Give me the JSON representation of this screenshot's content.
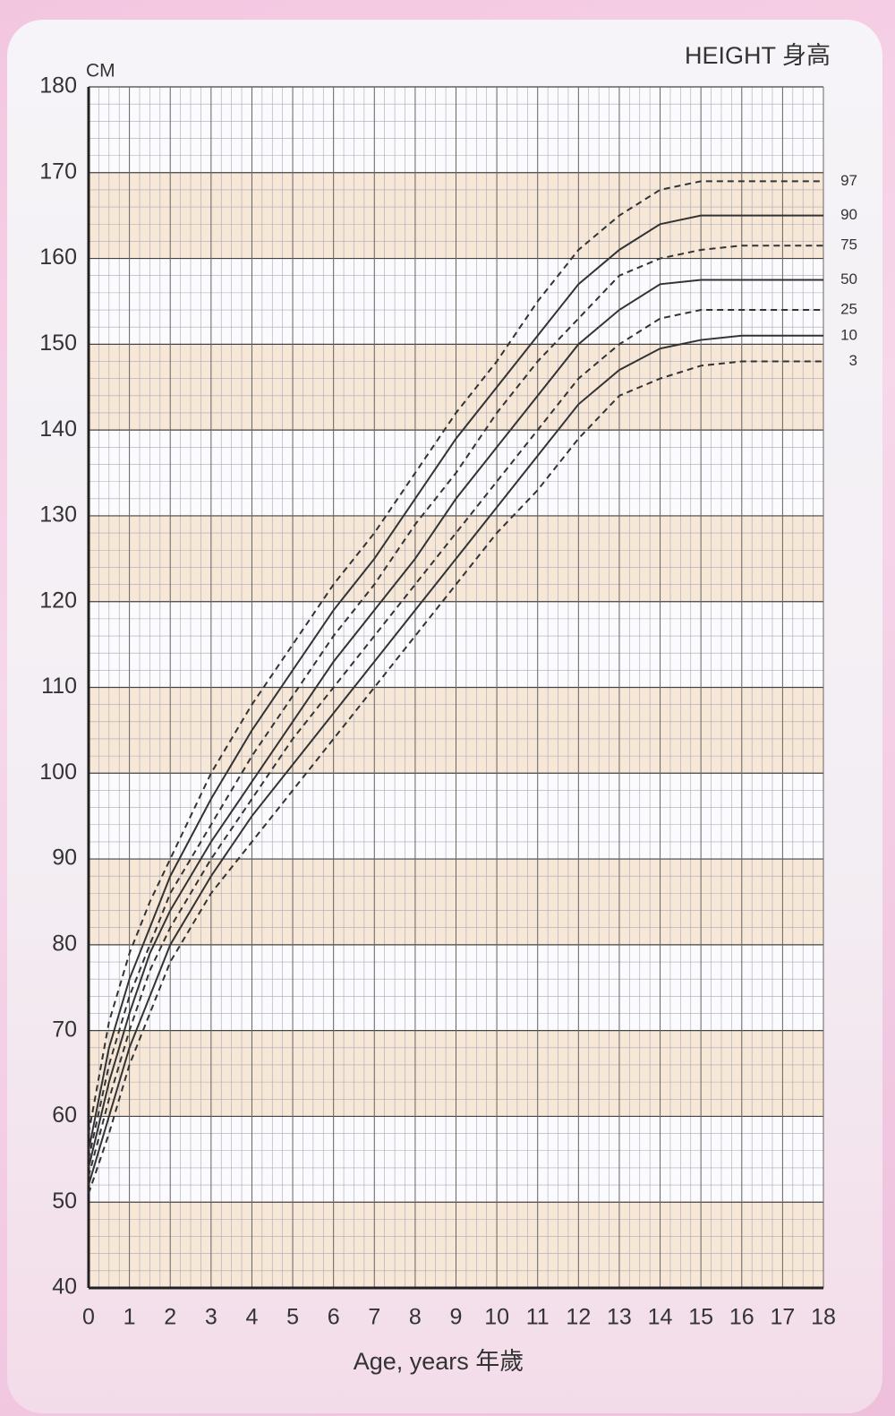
{
  "chart_data": {
    "type": "line",
    "title": "HEIGHT 身高",
    "y_unit": "CM",
    "x_label": "Age, years 年歲",
    "x": [
      0,
      0.5,
      1,
      1.5,
      2,
      3,
      4,
      5,
      6,
      7,
      8,
      9,
      10,
      11,
      12,
      13,
      14,
      15,
      16,
      17,
      18
    ],
    "series": [
      {
        "name": "97",
        "color": "#333333",
        "dashed": true,
        "values": [
          58,
          71,
          79,
          85,
          90,
          100,
          108,
          115,
          122,
          128,
          135,
          142,
          148,
          155,
          161,
          165,
          168,
          169,
          169,
          169,
          169
        ]
      },
      {
        "name": "90",
        "color": "#333333",
        "dashed": false,
        "values": [
          56,
          68,
          76,
          82,
          88,
          97,
          105,
          112,
          119,
          125,
          132,
          139,
          145,
          151,
          157,
          161,
          164,
          165,
          165,
          165,
          165
        ]
      },
      {
        "name": "75",
        "color": "#333333",
        "dashed": true,
        "values": [
          55,
          66,
          74,
          80,
          86,
          94,
          102,
          109,
          116,
          122,
          129,
          135,
          142,
          148,
          153,
          158,
          160,
          161,
          161.5,
          161.5,
          161.5
        ]
      },
      {
        "name": "50",
        "color": "#333333",
        "dashed": false,
        "values": [
          54,
          64,
          72,
          79,
          84,
          92,
          99,
          106,
          113,
          119,
          125,
          132,
          138,
          144,
          150,
          154,
          157,
          157.5,
          157.5,
          157.5,
          157.5
        ]
      },
      {
        "name": "25",
        "color": "#333333",
        "dashed": true,
        "values": [
          53,
          62,
          70,
          77,
          82,
          90,
          97,
          104,
          110,
          116,
          122,
          128,
          134,
          140,
          146,
          150,
          153,
          154,
          154,
          154,
          154
        ]
      },
      {
        "name": "10",
        "color": "#333333",
        "dashed": false,
        "values": [
          52,
          60,
          68,
          74,
          80,
          88,
          95,
          101,
          107,
          113,
          119,
          125,
          131,
          137,
          143,
          147,
          149.5,
          150.5,
          151,
          151,
          151
        ]
      },
      {
        "name": "3",
        "color": "#333333",
        "dashed": true,
        "values": [
          51,
          58,
          66,
          72,
          78,
          86,
          92,
          98,
          104,
          110,
          116,
          122,
          128,
          133,
          139,
          144,
          146,
          147.5,
          148,
          148,
          148
        ]
      }
    ],
    "xlim": [
      0,
      18
    ],
    "xticks": [
      0,
      1,
      2,
      3,
      4,
      5,
      6,
      7,
      8,
      9,
      10,
      11,
      12,
      13,
      14,
      15,
      16,
      17,
      18
    ],
    "ylim": [
      40,
      180
    ],
    "yticks": [
      40,
      50,
      60,
      70,
      80,
      90,
      100,
      110,
      120,
      130,
      140,
      150,
      160,
      170,
      180
    ],
    "grid": true,
    "band_color": "#f4e3cf"
  }
}
